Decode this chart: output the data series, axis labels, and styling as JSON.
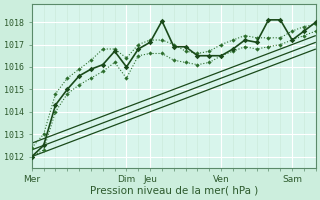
{
  "xlabel": "Pression niveau de la mer( hPa )",
  "bg_color": "#cceedd",
  "plot_bg_color": "#d8f5ec",
  "grid_color": "#b8ddd0",
  "line_color": "#2d6e2d",
  "dark_line_color": "#1a4a1a",
  "ylim": [
    1011.5,
    1018.8
  ],
  "xlim": [
    0,
    24
  ],
  "yticks": [
    1012,
    1013,
    1014,
    1015,
    1016,
    1017,
    1018
  ],
  "xtick_positions": [
    0,
    8,
    10,
    16,
    22
  ],
  "xtick_labels": [
    "Mer",
    "Dim",
    "Jeu",
    "Ven",
    "Sam"
  ],
  "series_main": {
    "x": [
      0,
      1,
      2,
      3,
      4,
      5,
      6,
      7,
      8,
      9,
      10,
      11,
      12,
      13,
      14,
      15,
      16,
      17,
      18,
      19,
      20,
      21,
      22,
      23,
      24
    ],
    "y": [
      1012.0,
      1012.5,
      1014.3,
      1015.0,
      1015.6,
      1015.9,
      1016.1,
      1016.7,
      1016.0,
      1016.8,
      1017.1,
      1018.05,
      1016.9,
      1016.9,
      1016.5,
      1016.5,
      1016.5,
      1016.8,
      1017.2,
      1017.1,
      1018.1,
      1018.1,
      1017.2,
      1017.6,
      1018.0
    ]
  },
  "series_upper": {
    "x": [
      0,
      1,
      2,
      3,
      4,
      5,
      6,
      7,
      8,
      9,
      10,
      11,
      12,
      13,
      14,
      15,
      16,
      17,
      18,
      19,
      20,
      21,
      22,
      23,
      24
    ],
    "y": [
      1012.4,
      1013.0,
      1014.8,
      1015.5,
      1015.9,
      1016.3,
      1016.8,
      1016.8,
      1016.4,
      1017.0,
      1017.2,
      1017.2,
      1017.0,
      1016.7,
      1016.6,
      1016.7,
      1017.0,
      1017.2,
      1017.4,
      1017.3,
      1017.3,
      1017.3,
      1017.6,
      1017.8,
      1017.9
    ]
  },
  "series_lower": {
    "x": [
      0,
      1,
      2,
      3,
      4,
      5,
      6,
      7,
      8,
      9,
      10,
      11,
      12,
      13,
      14,
      15,
      16,
      17,
      18,
      19,
      20,
      21,
      22,
      23,
      24
    ],
    "y": [
      1012.0,
      1012.3,
      1014.0,
      1014.8,
      1015.2,
      1015.5,
      1015.8,
      1016.2,
      1015.5,
      1016.5,
      1016.6,
      1016.6,
      1016.3,
      1016.2,
      1016.1,
      1016.2,
      1016.5,
      1016.7,
      1016.9,
      1016.8,
      1016.9,
      1017.0,
      1017.2,
      1017.4,
      1017.6
    ]
  },
  "trend_lines": [
    {
      "x": [
        0,
        24
      ],
      "y": [
        1012.0,
        1016.8
      ]
    },
    {
      "x": [
        0,
        24
      ],
      "y": [
        1012.3,
        1017.1
      ]
    },
    {
      "x": [
        0,
        24
      ],
      "y": [
        1012.6,
        1017.4
      ]
    }
  ]
}
